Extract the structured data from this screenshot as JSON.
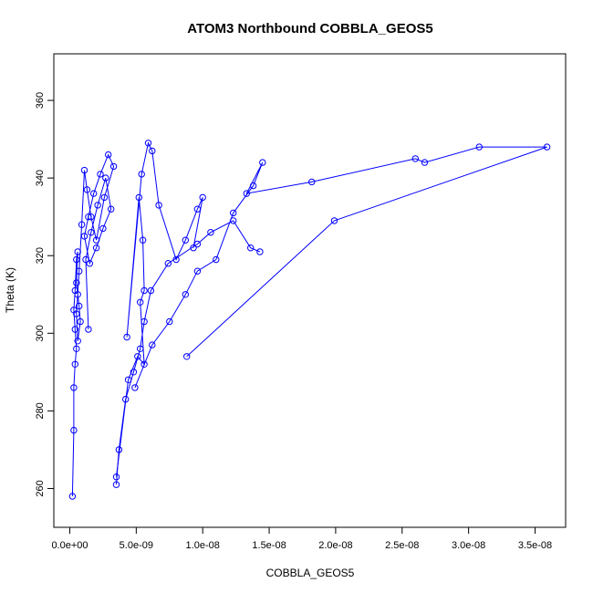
{
  "chart_data": {
    "type": "scatter",
    "title": "ATOM3 Northbound COBBLA_GEOS5",
    "xlabel": "COBBLA_GEOS5",
    "ylabel": "Theta (K)",
    "xlim": [
      -1.2e-09,
      3.73e-08
    ],
    "ylim": [
      250,
      372
    ],
    "x_ticks": [
      0,
      5e-09,
      1e-08,
      1.5e-08,
      2e-08,
      2.5e-08,
      3e-08,
      3.5e-08
    ],
    "x_tick_labels": [
      "0.0e+00",
      "5.0e-09",
      "1.0e-08",
      "1.5e-08",
      "2.0e-08",
      "2.5e-08",
      "3.0e-08",
      "3.5e-08"
    ],
    "y_ticks": [
      260,
      280,
      300,
      320,
      340,
      360
    ],
    "y_tick_labels": [
      "260",
      "280",
      "300",
      "320",
      "340",
      "360"
    ],
    "grid": false,
    "connected": true,
    "color": "#0000ff",
    "series": [
      {
        "x": [
          2e-10,
          3e-10,
          3e-10,
          4e-10,
          5e-10,
          4e-10,
          3e-10,
          4e-10,
          5e-10,
          6e-10,
          5e-10,
          7e-10,
          8e-10,
          6e-10,
          5e-10,
          6e-10,
          7e-10,
          9e-10,
          1.1e-09,
          1.3e-09,
          1.6e-09,
          2e-09,
          2.6e-09,
          3.3e-09,
          2.9e-09,
          2.3e-09,
          1.8e-09,
          1.4e-09,
          1.1e-09,
          1.5e-09,
          2e-09,
          2.5e-09,
          3.1e-09,
          2.7e-09,
          2.1e-09,
          1.6e-09,
          1.2e-09,
          1.4e-09
        ],
        "y": [
          258,
          275,
          286,
          292,
          296,
          301,
          306,
          311,
          319,
          321,
          313,
          307,
          303,
          298,
          305,
          310,
          316,
          328,
          342,
          337,
          330,
          324,
          335,
          343,
          346,
          341,
          336,
          330,
          325,
          318,
          322,
          327,
          332,
          340,
          333,
          326,
          319,
          301
        ]
      },
      {
        "x": [
          3.5e-09,
          3.7e-09,
          4.2e-09,
          4.8e-09,
          5.3e-09,
          5.6e-09,
          6.1e-09,
          7.4e-09,
          9.6e-09,
          1.06e-08,
          1.23e-08,
          1.36e-08,
          1.43e-08
        ],
        "y": [
          261,
          270,
          283,
          290,
          296,
          303,
          311,
          318,
          323,
          326,
          329,
          322,
          321
        ]
      },
      {
        "x": [
          3.5e-09,
          4.4e-09,
          5.1e-09,
          5.6e-09,
          5.3e-09,
          5.6e-09,
          5.5e-09,
          5.2e-09,
          4.3e-09,
          5.4e-09,
          5.9e-09,
          6.2e-09,
          6.7e-09,
          8e-09,
          8.7e-09,
          9.6e-09,
          1e-08,
          9.3e-09
        ],
        "y": [
          263,
          288,
          294,
          292,
          308,
          311,
          324,
          335,
          299,
          341,
          349,
          347,
          333,
          319,
          324,
          332,
          335,
          322
        ]
      },
      {
        "x": [
          4.9e-09,
          6.2e-09,
          7.5e-09,
          8.7e-09,
          9.6e-09,
          1.1e-08,
          1.23e-08,
          1.38e-08,
          1.45e-08,
          1.33e-08,
          1.82e-08,
          2.6e-08,
          2.67e-08,
          3.08e-08,
          3.59e-08,
          1.99e-08,
          8.8e-09
        ],
        "y": [
          286,
          297,
          303,
          310,
          316,
          319,
          331,
          338,
          344,
          336,
          339,
          345,
          344,
          348,
          348,
          329,
          294
        ]
      }
    ]
  }
}
